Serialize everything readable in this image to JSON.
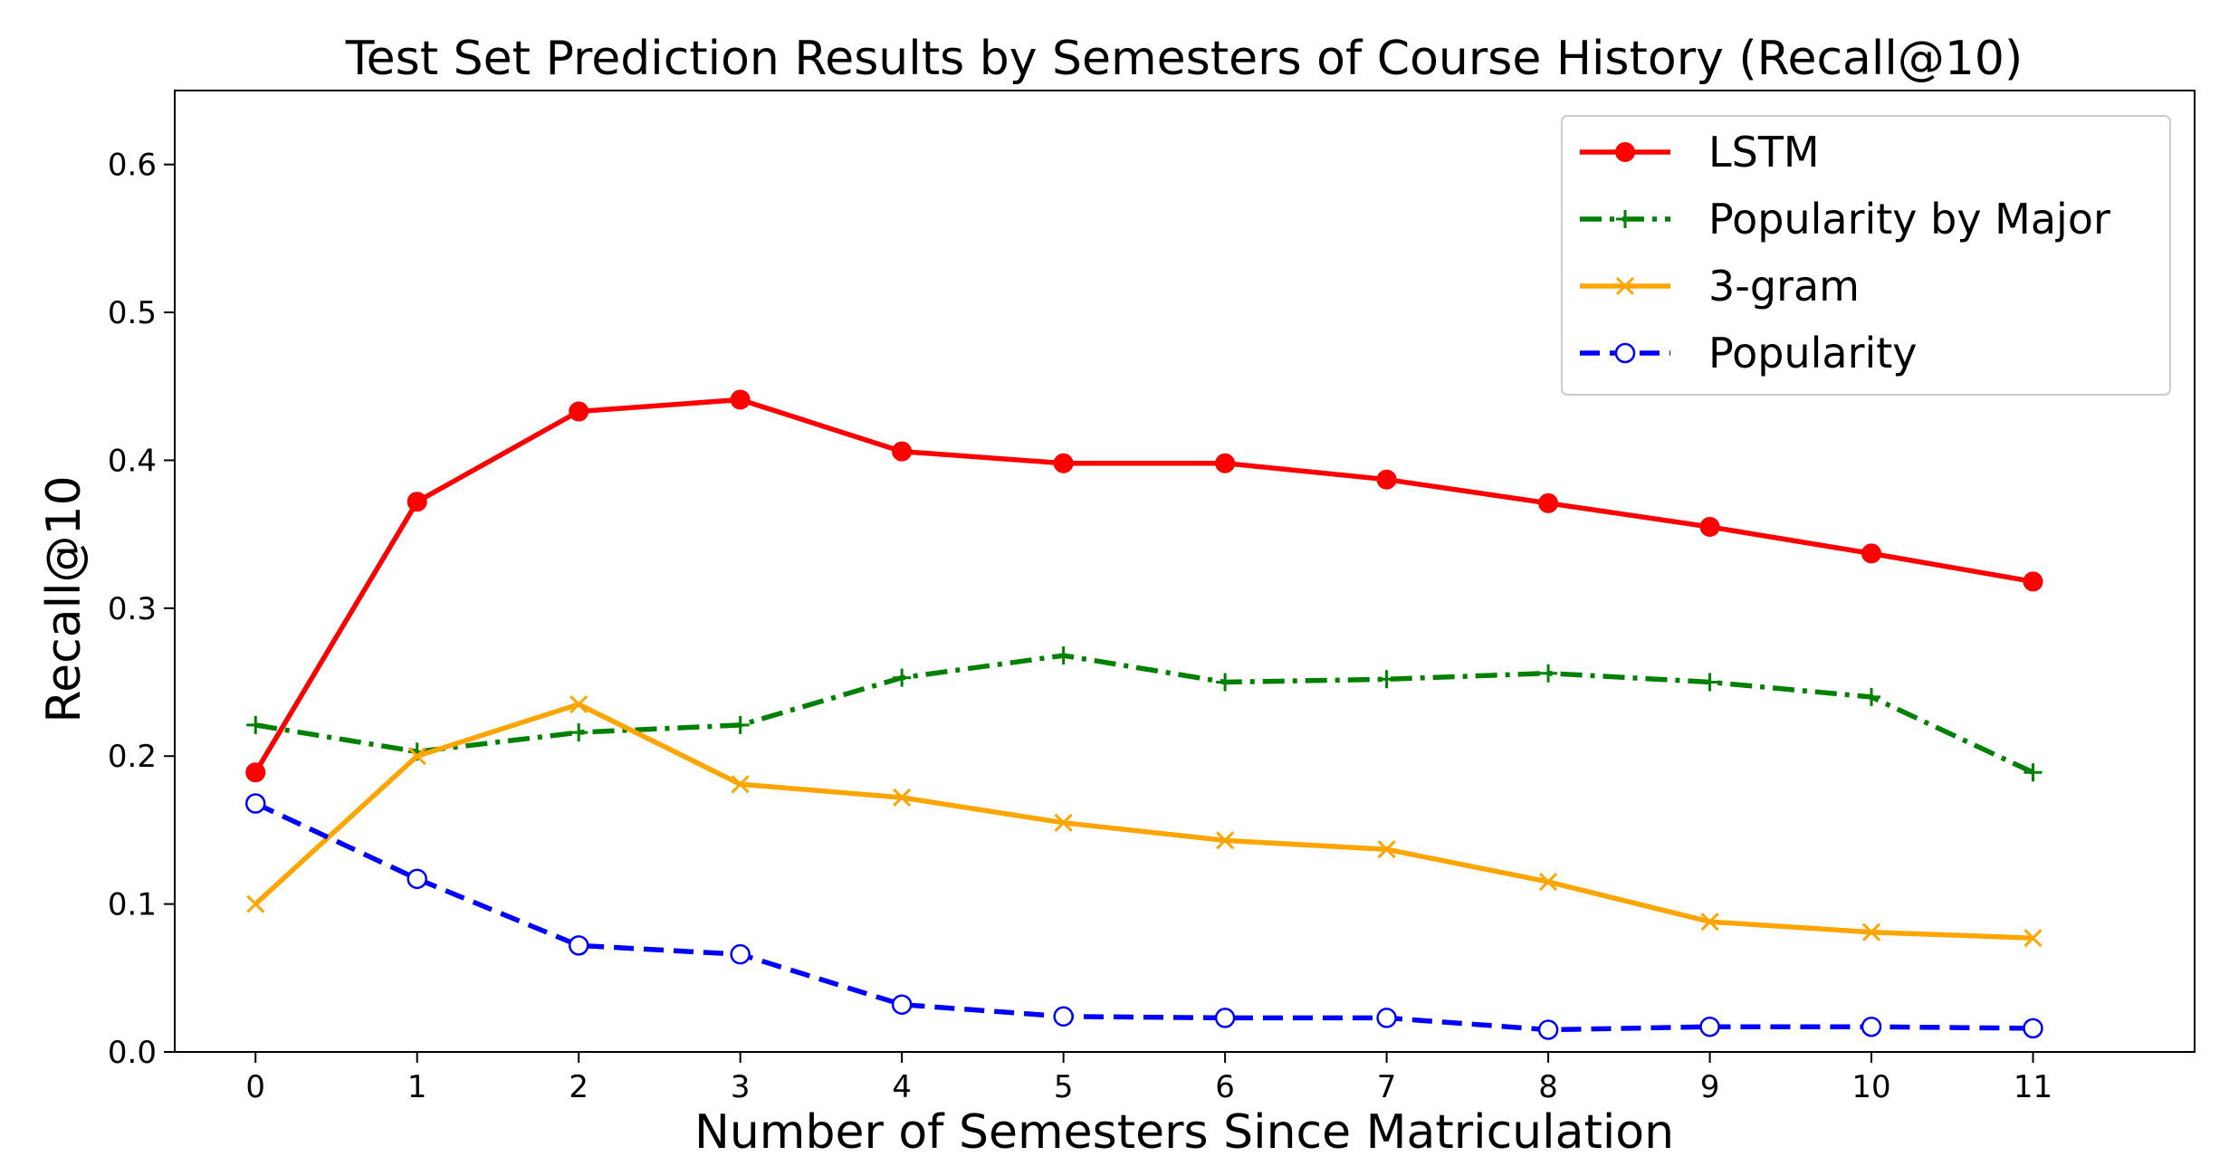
{
  "chart_data": {
    "type": "line",
    "title": "Test Set Prediction Results by Semesters of Course History (Recall@10)",
    "xlabel": "Number of Semesters Since Matriculation",
    "ylabel": "Recall@10",
    "x": [
      0,
      1,
      2,
      3,
      4,
      5,
      6,
      7,
      8,
      9,
      10,
      11
    ],
    "xlim": [
      -0.5,
      12.0
    ],
    "ylim": [
      0.0,
      0.65
    ],
    "xticks": [
      "0",
      "1",
      "2",
      "3",
      "4",
      "5",
      "6",
      "7",
      "8",
      "9",
      "10",
      "11"
    ],
    "yticks": [
      "0.0",
      "0.1",
      "0.2",
      "0.3",
      "0.4",
      "0.5",
      "0.6"
    ],
    "grid": false,
    "legend_position": "top-right",
    "series": [
      {
        "name": "LSTM",
        "color": "#ff0000",
        "marker": "filled-circle",
        "linestyle": "solid",
        "values": [
          0.189,
          0.372,
          0.433,
          0.441,
          0.406,
          0.398,
          0.398,
          0.387,
          0.371,
          0.355,
          0.337,
          0.318
        ]
      },
      {
        "name": "Popularity by Major",
        "color": "#008000",
        "marker": "plus",
        "linestyle": "dashdot",
        "values": [
          0.221,
          0.203,
          0.216,
          0.221,
          0.253,
          0.268,
          0.25,
          0.252,
          0.256,
          0.25,
          0.24,
          0.189
        ]
      },
      {
        "name": "3-gram",
        "color": "#ffa500",
        "marker": "x",
        "linestyle": "solid",
        "values": [
          0.1,
          0.2,
          0.235,
          0.181,
          0.172,
          0.155,
          0.143,
          0.137,
          0.115,
          0.088,
          0.081,
          0.077
        ]
      },
      {
        "name": "Popularity",
        "color": "#0000ff",
        "marker": "open-circle",
        "linestyle": "dashed",
        "values": [
          0.168,
          0.117,
          0.072,
          0.066,
          0.032,
          0.024,
          0.023,
          0.023,
          0.015,
          0.017,
          0.017,
          0.016
        ]
      }
    ]
  }
}
